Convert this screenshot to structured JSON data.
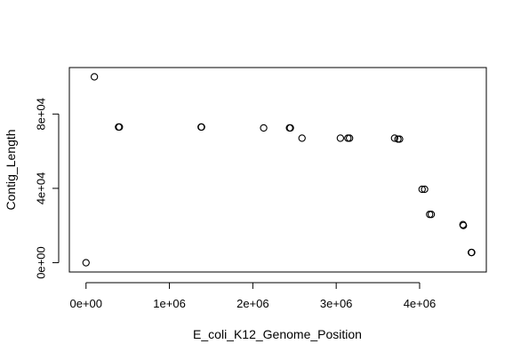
{
  "chart_data": {
    "type": "scatter",
    "title": "",
    "xlabel": "E_coli_K12_Genome_Position",
    "ylabel": "Contig_Length",
    "xlim": [
      -200000,
      4800000
    ],
    "ylim": [
      -5000,
      105000
    ],
    "xticks": [
      0,
      1000000,
      2000000,
      3000000,
      4000000
    ],
    "xtick_labels": [
      "0e+00",
      "1e+06",
      "2e+06",
      "3e+06",
      "4e+06"
    ],
    "yticks": [
      0,
      40000,
      80000
    ],
    "ytick_labels": [
      "0e+00",
      "4e+04",
      "8e+04"
    ],
    "grid": false,
    "marker": "open-circle",
    "points": [
      {
        "x": 0,
        "y": 0
      },
      {
        "x": 100000,
        "y": 100000
      },
      {
        "x": 390000,
        "y": 73000
      },
      {
        "x": 400000,
        "y": 73000
      },
      {
        "x": 1380000,
        "y": 73000
      },
      {
        "x": 1385000,
        "y": 73000
      },
      {
        "x": 2130000,
        "y": 72500
      },
      {
        "x": 2440000,
        "y": 72500
      },
      {
        "x": 2450000,
        "y": 72500
      },
      {
        "x": 2590000,
        "y": 67000
      },
      {
        "x": 3050000,
        "y": 67000
      },
      {
        "x": 3140000,
        "y": 67000
      },
      {
        "x": 3160000,
        "y": 67000
      },
      {
        "x": 3700000,
        "y": 67000
      },
      {
        "x": 3740000,
        "y": 66500
      },
      {
        "x": 3760000,
        "y": 66500
      },
      {
        "x": 4030000,
        "y": 39500
      },
      {
        "x": 4060000,
        "y": 39500
      },
      {
        "x": 4120000,
        "y": 26000
      },
      {
        "x": 4140000,
        "y": 26000
      },
      {
        "x": 4520000,
        "y": 20500
      },
      {
        "x": 4525000,
        "y": 20000
      },
      {
        "x": 4620000,
        "y": 5500
      },
      {
        "x": 4625000,
        "y": 5500
      }
    ]
  }
}
